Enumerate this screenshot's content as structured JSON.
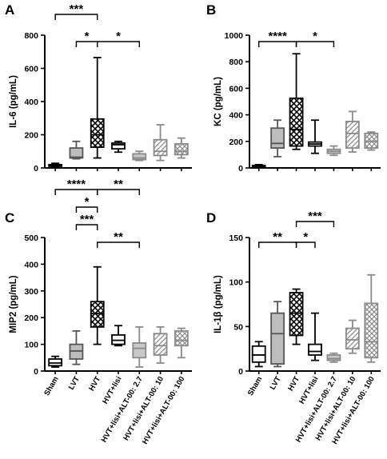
{
  "categories": [
    "Sham",
    "LVT",
    "HVT",
    "HVT+lisi",
    "HVT+lisi+ALT-00: 2.7",
    "HVT+lisi+ALT-00: 10",
    "HVT+lisi+ALT-00: 100"
  ],
  "group_styles": [
    {
      "fill": "white",
      "stroke": "#000000"
    },
    {
      "fill": "solid",
      "color": "#bdbdbd",
      "stroke": "#555555"
    },
    {
      "fill": "crosshatch",
      "stroke": "#000000"
    },
    {
      "fill": "white",
      "stroke": "#000000"
    },
    {
      "fill": "solid",
      "color": "#c8c8c8",
      "stroke": "#8a8a8a"
    },
    {
      "fill": "diagonal",
      "stroke": "#8a8a8a"
    },
    {
      "fill": "crosshatch",
      "stroke": "#8a8a8a"
    }
  ],
  "chart_data": [
    {
      "panel": "A",
      "type": "box",
      "ylabel": "IL-6 (pg/mL)",
      "ylim": [
        0,
        800
      ],
      "yticks": [
        0,
        200,
        400,
        600,
        800
      ],
      "grid": false,
      "boxes": [
        {
          "min": 5,
          "q1": 10,
          "median": 15,
          "q3": 20,
          "max": 28
        },
        {
          "min": 55,
          "q1": 60,
          "median": 65,
          "q3": 120,
          "max": 160
        },
        {
          "min": 60,
          "q1": 125,
          "median": 200,
          "q3": 295,
          "max": 665
        },
        {
          "min": 95,
          "q1": 115,
          "median": 140,
          "q3": 150,
          "max": 160
        },
        {
          "min": 45,
          "q1": 50,
          "median": 60,
          "q3": 85,
          "max": 100
        },
        {
          "min": 45,
          "q1": 75,
          "median": 100,
          "q3": 170,
          "max": 260
        },
        {
          "min": 60,
          "q1": 80,
          "median": 100,
          "q3": 145,
          "max": 180
        }
      ],
      "significance": [
        {
          "from": 0,
          "to": 2,
          "label": "***",
          "level": 1
        },
        {
          "from": 1,
          "to": 2,
          "label": "*",
          "level": 0
        },
        {
          "from": 2,
          "to": 4,
          "label": "*",
          "level": 0
        }
      ]
    },
    {
      "panel": "B",
      "type": "box",
      "ylabel": "KC (pg/mL)",
      "ylim": [
        0,
        1000
      ],
      "yticks": [
        0,
        200,
        400,
        600,
        800,
        1000
      ],
      "grid": false,
      "boxes": [
        {
          "min": 5,
          "q1": 8,
          "median": 12,
          "q3": 18,
          "max": 25
        },
        {
          "min": 85,
          "q1": 150,
          "median": 185,
          "q3": 300,
          "max": 360
        },
        {
          "min": 140,
          "q1": 165,
          "median": 290,
          "q3": 525,
          "max": 860
        },
        {
          "min": 110,
          "q1": 165,
          "median": 180,
          "q3": 195,
          "max": 360
        },
        {
          "min": 95,
          "q1": 110,
          "median": 125,
          "q3": 140,
          "max": 165
        },
        {
          "min": 120,
          "q1": 150,
          "median": 260,
          "q3": 350,
          "max": 425
        },
        {
          "min": 135,
          "q1": 150,
          "median": 200,
          "q3": 260,
          "max": 270
        }
      ],
      "significance": [
        {
          "from": 0,
          "to": 2,
          "label": "****",
          "level": 0
        },
        {
          "from": 2,
          "to": 4,
          "label": "*",
          "level": 0
        }
      ]
    },
    {
      "panel": "C",
      "type": "box",
      "ylabel": "MIP2 (pg/mL)",
      "ylim": [
        0,
        500
      ],
      "yticks": [
        0,
        100,
        200,
        300,
        400,
        500
      ],
      "grid": false,
      "boxes": [
        {
          "min": 15,
          "q1": 20,
          "median": 30,
          "q3": 45,
          "max": 55
        },
        {
          "min": 25,
          "q1": 45,
          "median": 75,
          "q3": 100,
          "max": 150
        },
        {
          "min": 100,
          "q1": 165,
          "median": 215,
          "q3": 260,
          "max": 390
        },
        {
          "min": 95,
          "q1": 100,
          "median": 115,
          "q3": 135,
          "max": 170
        },
        {
          "min": 15,
          "q1": 50,
          "median": 85,
          "q3": 105,
          "max": 165
        },
        {
          "min": 30,
          "q1": 60,
          "median": 95,
          "q3": 140,
          "max": 165
        },
        {
          "min": 50,
          "q1": 95,
          "median": 115,
          "q3": 150,
          "max": 160
        }
      ],
      "significance": [
        {
          "from": 0,
          "to": 2,
          "label": "****",
          "level": 3
        },
        {
          "from": 2,
          "to": 4,
          "label": "**",
          "level": 3
        },
        {
          "from": 1,
          "to": 2,
          "label": "*",
          "level": 2
        },
        {
          "from": 1,
          "to": 2,
          "label": "***",
          "level": 1
        },
        {
          "from": 2,
          "to": 4,
          "label": "**",
          "level": 0
        }
      ]
    },
    {
      "panel": "D",
      "type": "box",
      "ylabel": "IL-1β (pg/mL)",
      "ylim": [
        0,
        150
      ],
      "yticks": [
        0,
        50,
        100,
        150
      ],
      "grid": false,
      "boxes": [
        {
          "min": 5,
          "q1": 10,
          "median": 18,
          "q3": 28,
          "max": 33
        },
        {
          "min": 5,
          "q1": 8,
          "median": 42,
          "q3": 65,
          "max": 78
        },
        {
          "min": 30,
          "q1": 40,
          "median": 65,
          "q3": 88,
          "max": 92
        },
        {
          "min": 12,
          "q1": 18,
          "median": 22,
          "q3": 30,
          "max": 65
        },
        {
          "min": 10,
          "q1": 12,
          "median": 14,
          "q3": 18,
          "max": 20
        },
        {
          "min": 20,
          "q1": 25,
          "median": 35,
          "q3": 48,
          "max": 57
        },
        {
          "min": 10,
          "q1": 15,
          "median": 33,
          "q3": 76,
          "max": 108
        }
      ],
      "significance": [
        {
          "from": 0,
          "to": 2,
          "label": "**",
          "level": 0
        },
        {
          "from": 2,
          "to": 3,
          "label": "*",
          "level": 0
        },
        {
          "from": 2,
          "to": 4,
          "label": "***",
          "level": 1
        }
      ]
    }
  ]
}
